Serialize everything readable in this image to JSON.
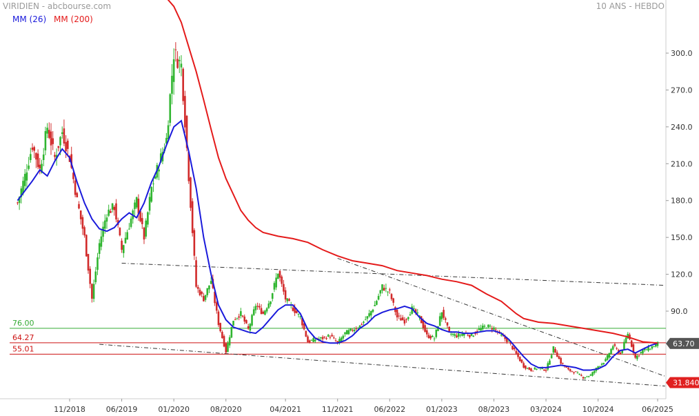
{
  "header": {
    "title": "VIRIDIEN - abcbourse.com",
    "timeframe": "10 ANS - HEBDO"
  },
  "colors": {
    "candle_up": "#2fb52f",
    "candle_down": "#d12a2a",
    "ma26": "#1a1adb",
    "ma200": "#e41a1a",
    "level_green": "#33aa33",
    "level_red": "#cc1111",
    "trendline": "#333333",
    "badge_current": "#555555",
    "badge_low": "#e02020"
  },
  "chart_data": {
    "type": "candlestick",
    "y_axis": {
      "ticks": [
        300.0,
        270.0,
        240.0,
        210.0,
        180.0,
        150.0,
        120.0,
        90.0
      ],
      "range": [
        15,
        345
      ]
    },
    "x_axis": {
      "ticks": [
        "11/2018",
        "06/2019",
        "01/2020",
        "08/2020",
        "04/2021",
        "11/2021",
        "06/2022",
        "01/2023",
        "08/2023",
        "03/2024",
        "10/2024",
        "06/2025"
      ]
    },
    "series": [
      {
        "name": "MM (26)",
        "points": [
          [
            "2018-04",
            180
          ],
          [
            "2018-06",
            196
          ],
          [
            "2018-07",
            205
          ],
          [
            "2018-08",
            200
          ],
          [
            "2018-09",
            212
          ],
          [
            "2018-10",
            222
          ],
          [
            "2018-11",
            215
          ],
          [
            "2018-12",
            195
          ],
          [
            "2019-01",
            178
          ],
          [
            "2019-02",
            165
          ],
          [
            "2019-03",
            157
          ],
          [
            "2019-04",
            155
          ],
          [
            "2019-05",
            158
          ],
          [
            "2019-06",
            165
          ],
          [
            "2019-07",
            170
          ],
          [
            "2019-08",
            166
          ],
          [
            "2019-09",
            178
          ],
          [
            "2019-10",
            195
          ],
          [
            "2019-11",
            208
          ],
          [
            "2019-12",
            225
          ],
          [
            "2020-01",
            240
          ],
          [
            "2020-02",
            245
          ],
          [
            "2020-03",
            220
          ],
          [
            "2020-04",
            190
          ],
          [
            "2020-05",
            150
          ],
          [
            "2020-06",
            120
          ],
          [
            "2020-07",
            95
          ],
          [
            "2020-08",
            83
          ],
          [
            "2020-09",
            77
          ],
          [
            "2020-10",
            75
          ],
          [
            "2020-11",
            73
          ],
          [
            "2020-12",
            72
          ],
          [
            "2021-01",
            77
          ],
          [
            "2021-02",
            84
          ],
          [
            "2021-03",
            91
          ],
          [
            "2021-04",
            95
          ],
          [
            "2021-05",
            95
          ],
          [
            "2021-06",
            88
          ],
          [
            "2021-07",
            75
          ],
          [
            "2021-08",
            68
          ],
          [
            "2021-09",
            65
          ],
          [
            "2021-10",
            64
          ],
          [
            "2021-11",
            64
          ],
          [
            "2021-12",
            66
          ],
          [
            "2022-01",
            70
          ],
          [
            "2022-02",
            76
          ],
          [
            "2022-03",
            80
          ],
          [
            "2022-04",
            86
          ],
          [
            "2022-05",
            89
          ],
          [
            "2022-06",
            91
          ],
          [
            "2022-07",
            92
          ],
          [
            "2022-08",
            94
          ],
          [
            "2022-09",
            92
          ],
          [
            "2022-10",
            85
          ],
          [
            "2022-11",
            80
          ],
          [
            "2022-12",
            78
          ],
          [
            "2023-01",
            75
          ],
          [
            "2023-02",
            73
          ],
          [
            "2023-03",
            73
          ],
          [
            "2023-04",
            72
          ],
          [
            "2023-05",
            72
          ],
          [
            "2023-06",
            73
          ],
          [
            "2023-07",
            74
          ],
          [
            "2023-08",
            74
          ],
          [
            "2023-09",
            72
          ],
          [
            "2023-10",
            67
          ],
          [
            "2023-11",
            60
          ],
          [
            "2023-12",
            53
          ],
          [
            "2024-01",
            47
          ],
          [
            "2024-02",
            44
          ],
          [
            "2024-03",
            44
          ],
          [
            "2024-04",
            45
          ],
          [
            "2024-05",
            46
          ],
          [
            "2024-06",
            45
          ],
          [
            "2024-07",
            44
          ],
          [
            "2024-08",
            42
          ],
          [
            "2024-09",
            42
          ],
          [
            "2024-10",
            43
          ],
          [
            "2024-11",
            46
          ],
          [
            "2024-12",
            53
          ],
          [
            "2025-01",
            58
          ],
          [
            "2025-02",
            59
          ],
          [
            "2025-03",
            56
          ],
          [
            "2025-04",
            59
          ],
          [
            "2025-05",
            62
          ],
          [
            "2025-06",
            64
          ]
        ]
      },
      {
        "name": "MM (200)",
        "points": [
          [
            "2019-12",
            345
          ],
          [
            "2020-01",
            338
          ],
          [
            "2020-02",
            325
          ],
          [
            "2020-03",
            305
          ],
          [
            "2020-04",
            285
          ],
          [
            "2020-05",
            262
          ],
          [
            "2020-06",
            238
          ],
          [
            "2020-07",
            215
          ],
          [
            "2020-08",
            198
          ],
          [
            "2020-09",
            185
          ],
          [
            "2020-10",
            172
          ],
          [
            "2020-11",
            164
          ],
          [
            "2020-12",
            158
          ],
          [
            "2021-01",
            154
          ],
          [
            "2021-03",
            151
          ],
          [
            "2021-05",
            149
          ],
          [
            "2021-07",
            146
          ],
          [
            "2021-09",
            140
          ],
          [
            "2021-11",
            135
          ],
          [
            "2022-01",
            131
          ],
          [
            "2022-03",
            129
          ],
          [
            "2022-05",
            127
          ],
          [
            "2022-07",
            123
          ],
          [
            "2022-09",
            121
          ],
          [
            "2022-11",
            119
          ],
          [
            "2023-01",
            116
          ],
          [
            "2023-03",
            114
          ],
          [
            "2023-05",
            111
          ],
          [
            "2023-07",
            104
          ],
          [
            "2023-09",
            98
          ],
          [
            "2023-11",
            88
          ],
          [
            "2023-12",
            84
          ],
          [
            "2024-02",
            81
          ],
          [
            "2024-04",
            80
          ],
          [
            "2024-06",
            78
          ],
          [
            "2024-08",
            76
          ],
          [
            "2024-10",
            74
          ],
          [
            "2024-12",
            72
          ],
          [
            "2025-02",
            69
          ],
          [
            "2025-04",
            65
          ],
          [
            "2025-06",
            64
          ]
        ]
      }
    ],
    "candles_note": "approximate weekly path",
    "price_path": [
      [
        "2018-04",
        178
      ],
      [
        "2018-05",
        200
      ],
      [
        "2018-06",
        225
      ],
      [
        "2018-07",
        205
      ],
      [
        "2018-08",
        240
      ],
      [
        "2018-09",
        215
      ],
      [
        "2018-10",
        236
      ],
      [
        "2018-11",
        215
      ],
      [
        "2018-12",
        180
      ],
      [
        "2019-01",
        150
      ],
      [
        "2019-02",
        100
      ],
      [
        "2019-03",
        145
      ],
      [
        "2019-04",
        170
      ],
      [
        "2019-05",
        175
      ],
      [
        "2019-06",
        140
      ],
      [
        "2019-07",
        160
      ],
      [
        "2019-08",
        180
      ],
      [
        "2019-09",
        150
      ],
      [
        "2019-10",
        190
      ],
      [
        "2019-11",
        210
      ],
      [
        "2019-12",
        230
      ],
      [
        "2020-01",
        300
      ],
      [
        "2020-02",
        290
      ],
      [
        "2020-03",
        200
      ],
      [
        "2020-04",
        110
      ],
      [
        "2020-05",
        100
      ],
      [
        "2020-06",
        115
      ],
      [
        "2020-07",
        80
      ],
      [
        "2020-08",
        57
      ],
      [
        "2020-09",
        83
      ],
      [
        "2020-10",
        88
      ],
      [
        "2020-11",
        75
      ],
      [
        "2020-12",
        95
      ],
      [
        "2021-01",
        88
      ],
      [
        "2021-02",
        100
      ],
      [
        "2021-03",
        122
      ],
      [
        "2021-04",
        100
      ],
      [
        "2021-05",
        92
      ],
      [
        "2021-06",
        85
      ],
      [
        "2021-07",
        65
      ],
      [
        "2021-08",
        67
      ],
      [
        "2021-09",
        68
      ],
      [
        "2021-10",
        70
      ],
      [
        "2021-11",
        64
      ],
      [
        "2021-12",
        72
      ],
      [
        "2022-01",
        75
      ],
      [
        "2022-02",
        78
      ],
      [
        "2022-03",
        85
      ],
      [
        "2022-04",
        95
      ],
      [
        "2022-05",
        110
      ],
      [
        "2022-06",
        105
      ],
      [
        "2022-07",
        85
      ],
      [
        "2022-08",
        82
      ],
      [
        "2022-09",
        92
      ],
      [
        "2022-10",
        85
      ],
      [
        "2022-11",
        70
      ],
      [
        "2022-12",
        68
      ],
      [
        "2023-01",
        90
      ],
      [
        "2023-02",
        72
      ],
      [
        "2023-03",
        70
      ],
      [
        "2023-04",
        72
      ],
      [
        "2023-05",
        70
      ],
      [
        "2023-06",
        75
      ],
      [
        "2023-07",
        78
      ],
      [
        "2023-08",
        76
      ],
      [
        "2023-09",
        70
      ],
      [
        "2023-10",
        65
      ],
      [
        "2023-11",
        55
      ],
      [
        "2023-12",
        45
      ],
      [
        "2024-01",
        42
      ],
      [
        "2024-02",
        44
      ],
      [
        "2024-03",
        42
      ],
      [
        "2024-04",
        60
      ],
      [
        "2024-05",
        48
      ],
      [
        "2024-06",
        42
      ],
      [
        "2024-07",
        40
      ],
      [
        "2024-08",
        36
      ],
      [
        "2024-09",
        38
      ],
      [
        "2024-10",
        45
      ],
      [
        "2024-11",
        50
      ],
      [
        "2024-12",
        62
      ],
      [
        "2025-01",
        55
      ],
      [
        "2025-02",
        72
      ],
      [
        "2025-03",
        52
      ],
      [
        "2025-04",
        58
      ],
      [
        "2025-05",
        60
      ],
      [
        "2025-06",
        63.7
      ]
    ],
    "levels": [
      {
        "label": "76.00",
        "value": 76.0,
        "color": "green"
      },
      {
        "label": "64.27",
        "value": 64.27,
        "color": "red"
      },
      {
        "label": "55.01",
        "value": 55.01,
        "color": "red"
      }
    ],
    "trendlines": [
      {
        "from": [
          "2019-06",
          129
        ],
        "to": [
          "2025-07",
          111
        ]
      },
      {
        "from": [
          "2021-11",
          133
        ],
        "to": [
          "2025-07",
          37
        ]
      },
      {
        "from": [
          "2019-03",
          63
        ],
        "to": [
          "2025-07",
          29
        ]
      }
    ],
    "badges": [
      {
        "label": "63.70",
        "value": 63.7,
        "kind": "current"
      },
      {
        "label": "31.840",
        "value": 31.84,
        "kind": "low"
      }
    ]
  }
}
